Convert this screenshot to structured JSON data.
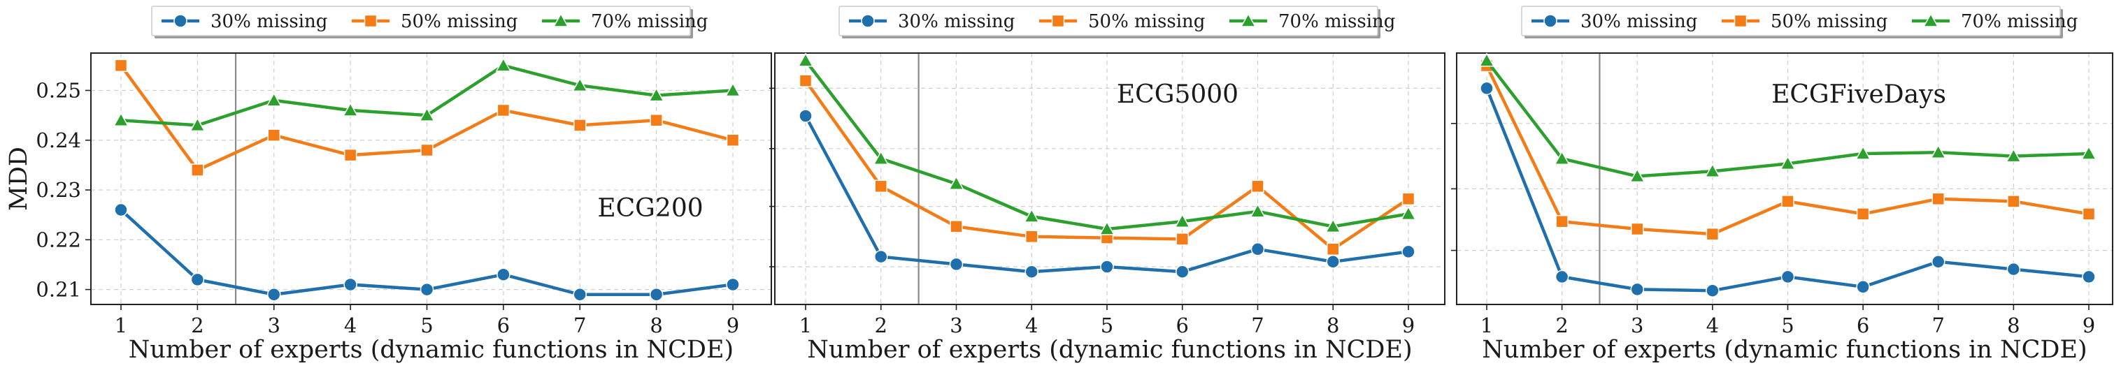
{
  "chart_data": [
    {
      "type": "line",
      "title": "",
      "annotation": "ECG200",
      "xlabel": "Number of experts (dynamic functions in NCDE)",
      "ylabel": "MDD",
      "x": [
        1,
        2,
        3,
        4,
        5,
        6,
        7,
        8,
        9
      ],
      "xticks": [
        "1",
        "2",
        "3",
        "4",
        "5",
        "6",
        "7",
        "8",
        "9"
      ],
      "ylim": [
        0.207,
        0.2575
      ],
      "yticks": [
        0.21,
        0.22,
        0.23,
        0.24,
        0.25
      ],
      "ytick_labels": [
        "0.21",
        "0.22",
        "0.23",
        "0.24",
        "0.25"
      ],
      "vline_x": 2.5,
      "grid": true,
      "legend": "top-center",
      "series": [
        {
          "name": "30% missing",
          "values": [
            0.226,
            0.212,
            0.209,
            0.211,
            0.21,
            0.213,
            0.209,
            0.209,
            0.211
          ]
        },
        {
          "name": "50% missing",
          "values": [
            0.255,
            0.234,
            0.241,
            0.237,
            0.238,
            0.246,
            0.243,
            0.244,
            0.24
          ]
        },
        {
          "name": "70% missing",
          "values": [
            0.244,
            0.243,
            0.248,
            0.246,
            0.245,
            0.255,
            0.251,
            0.249,
            0.25
          ]
        }
      ]
    },
    {
      "type": "line",
      "title": "",
      "annotation": "ECG5000",
      "xlabel": "Number of experts (dynamic functions in NCDE)",
      "ylabel": "",
      "x": [
        1,
        2,
        3,
        4,
        5,
        6,
        7,
        8,
        9
      ],
      "xticks": [
        "1",
        "2",
        "3",
        "4",
        "5",
        "6",
        "7",
        "8",
        "9"
      ],
      "ylim": [
        0.0,
        1.0
      ],
      "yticks": [
        0.15,
        0.39,
        0.62,
        0.86
      ],
      "ytick_labels": [],
      "vline_x": 2.5,
      "grid": true,
      "legend": "top-center",
      "series": [
        {
          "name": "30% missing",
          "values": [
            0.75,
            0.19,
            0.16,
            0.13,
            0.15,
            0.13,
            0.22,
            0.17,
            0.21
          ]
        },
        {
          "name": "50% missing",
          "values": [
            0.89,
            0.47,
            0.31,
            0.27,
            0.265,
            0.26,
            0.47,
            0.22,
            0.42
          ]
        },
        {
          "name": "70% missing",
          "values": [
            0.97,
            0.58,
            0.48,
            0.35,
            0.3,
            0.33,
            0.37,
            0.31,
            0.36
          ]
        }
      ]
    },
    {
      "type": "line",
      "title": "",
      "annotation": "ECGFiveDays",
      "xlabel": "Number of experts (dynamic functions in NCDE)",
      "ylabel": "",
      "x": [
        1,
        2,
        3,
        4,
        5,
        6,
        7,
        8,
        9
      ],
      "xticks": [
        "1",
        "2",
        "3",
        "4",
        "5",
        "6",
        "7",
        "8",
        "9"
      ],
      "ylim": [
        0.0,
        1.0
      ],
      "yticks": [
        0.215,
        0.46,
        0.72
      ],
      "ytick_labels": [],
      "vline_x": 2.5,
      "grid": true,
      "legend": "top-center",
      "series": [
        {
          "name": "30% missing",
          "values": [
            0.86,
            0.11,
            0.06,
            0.055,
            0.11,
            0.07,
            0.17,
            0.14,
            0.11
          ]
        },
        {
          "name": "50% missing",
          "values": [
            0.95,
            0.33,
            0.3,
            0.28,
            0.41,
            0.36,
            0.42,
            0.41,
            0.36
          ]
        },
        {
          "name": "70% missing",
          "values": [
            0.97,
            0.58,
            0.51,
            0.53,
            0.56,
            0.6,
            0.605,
            0.59,
            0.6
          ]
        }
      ]
    }
  ],
  "colors": {
    "30% missing": "#1f6fad",
    "50% missing": "#f47c16",
    "70% missing": "#2ca02c"
  },
  "markers": {
    "30% missing": "circle",
    "50% missing": "square",
    "70% missing": "triangle"
  }
}
